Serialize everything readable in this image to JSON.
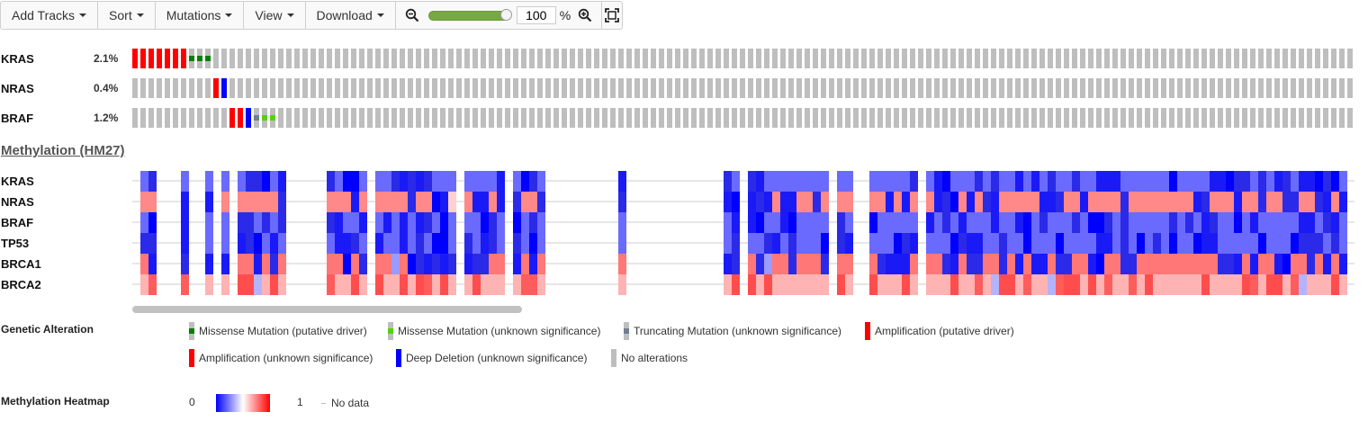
{
  "toolbar": {
    "add_tracks": "Add Tracks",
    "sort": "Sort",
    "mutations": "Mutations",
    "view": "View",
    "download": "Download",
    "zoom_value": "100",
    "zoom_unit": "%",
    "zoom_level": 1.0
  },
  "genetic_tracks": [
    {
      "gene": "KRAS",
      "pct": "2.1%"
    },
    {
      "gene": "NRAS",
      "pct": "0.4%"
    },
    {
      "gene": "BRAF",
      "pct": "1.2%"
    }
  ],
  "methylation": {
    "title": "Methylation (HM27)",
    "genes": [
      "KRAS",
      "NRAS",
      "BRAF",
      "TP53",
      "BRCA1",
      "BRCA2"
    ]
  },
  "legend": {
    "genetic_title": "Genetic Alteration",
    "items": [
      {
        "label": "Missense Mutation (putative driver)",
        "type": "missense-driver",
        "color": "#008000"
      },
      {
        "label": "Missense Mutation (unknown significance)",
        "type": "missense-vus",
        "color": "#53d400"
      },
      {
        "label": "Truncating Mutation (unknown significance)",
        "type": "trunc-vus",
        "color": "#708090"
      },
      {
        "label": "Amplification (putative driver)",
        "type": "amp-driver",
        "color": "#ff0000"
      },
      {
        "label": "Amplification (unknown significance)",
        "type": "amp-vus",
        "color": "#ff0000"
      },
      {
        "label": "Deep Deletion (unknown significance)",
        "type": "del-vus",
        "color": "#0000ff"
      },
      {
        "label": "No alterations",
        "type": "none",
        "color": "#bebebe"
      }
    ],
    "heatmap_title": "Methylation Heatmap",
    "heatmap_min": "0",
    "heatmap_max": "1",
    "no_data": "No data"
  },
  "colors": {
    "no_alteration": "#bebebe",
    "amplification": "#ff0000",
    "deep_deletion": "#0000ff",
    "missense_driver": "#008000",
    "missense_vus": "#53d400",
    "truncating_vus": "#708090",
    "slider": "#76a844"
  }
}
